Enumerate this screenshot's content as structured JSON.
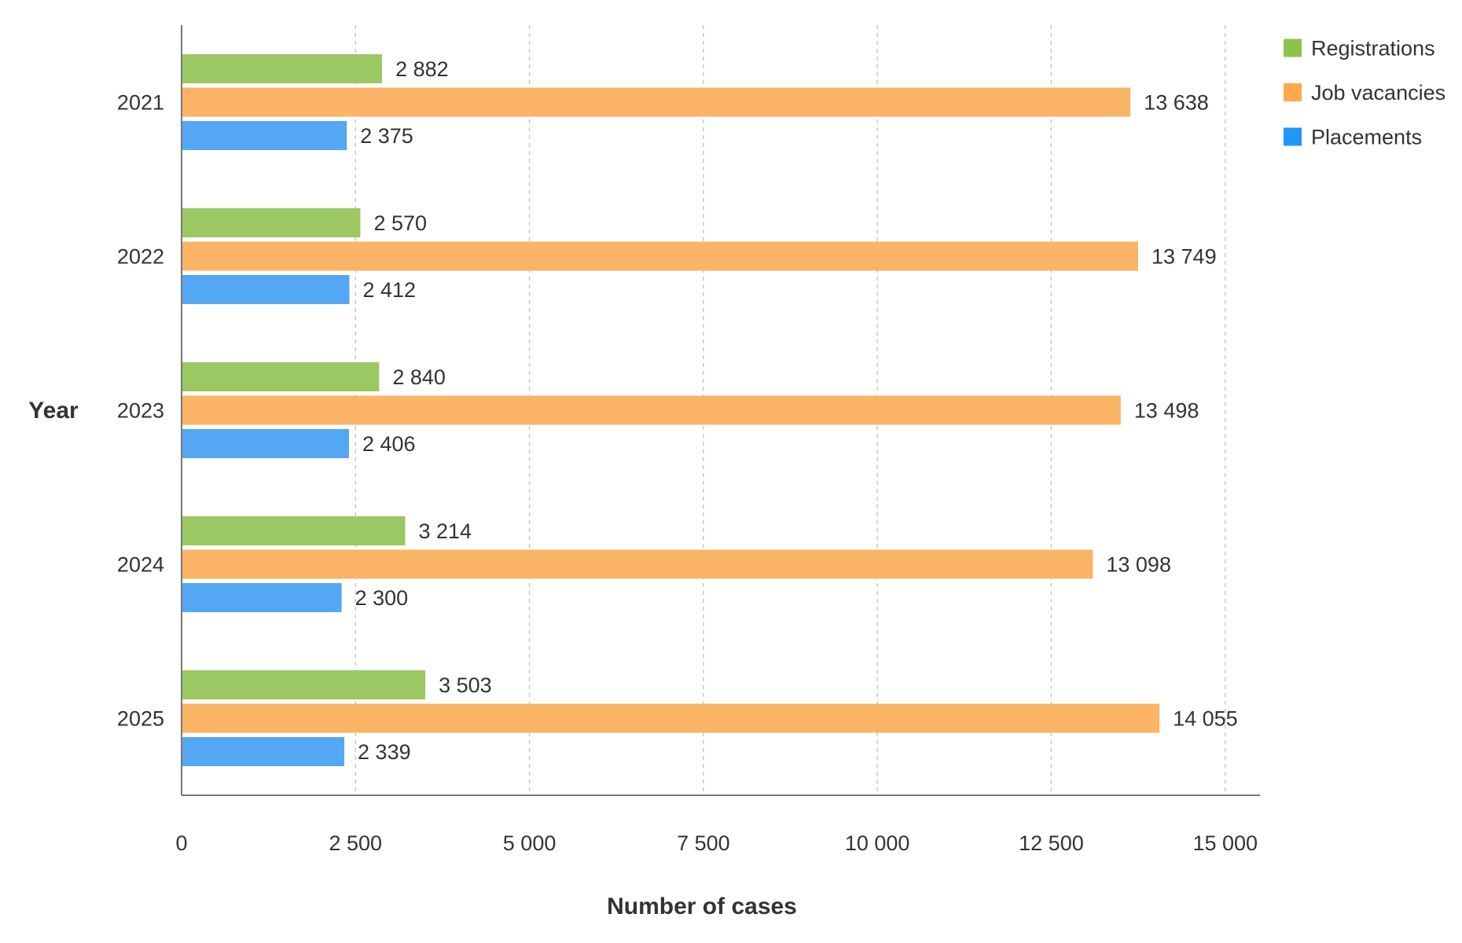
{
  "chart_data": {
    "type": "bar",
    "orientation": "horizontal",
    "categories": [
      "2021",
      "2022",
      "2023",
      "2024",
      "2025"
    ],
    "series": [
      {
        "name": "Registrations",
        "color": "#9bc862",
        "values": [
          2882,
          2570,
          2840,
          3214,
          3503
        ],
        "labels": [
          "2 882",
          "2 570",
          "2 840",
          "3 214",
          "3 503"
        ]
      },
      {
        "name": "Job vacancies",
        "color": "#fbb365",
        "values": [
          13638,
          13749,
          13498,
          13098,
          14055
        ],
        "labels": [
          "13 638",
          "13 749",
          "13 498",
          "13 098",
          "14 055"
        ]
      },
      {
        "name": "Placements",
        "color": "#54a7f2",
        "values": [
          2375,
          2412,
          2406,
          2300,
          2339
        ],
        "labels": [
          "2 375",
          "2 412",
          "2 406",
          "2 300",
          "2 339"
        ]
      }
    ],
    "xlabel": "Number of cases",
    "ylabel": "Year",
    "xlim": [
      0,
      15500
    ],
    "x_ticks": [
      0,
      2500,
      5000,
      7500,
      10000,
      12500,
      15000
    ],
    "x_tick_labels": [
      "0",
      "2 500",
      "5 000",
      "7 500",
      "10 000",
      "12 500",
      "15 000"
    ],
    "grid": "vertical dashed",
    "legend_position": "top-right",
    "legend_colors": [
      "#8bc34a",
      "#ffa94d",
      "#2196f3"
    ]
  }
}
